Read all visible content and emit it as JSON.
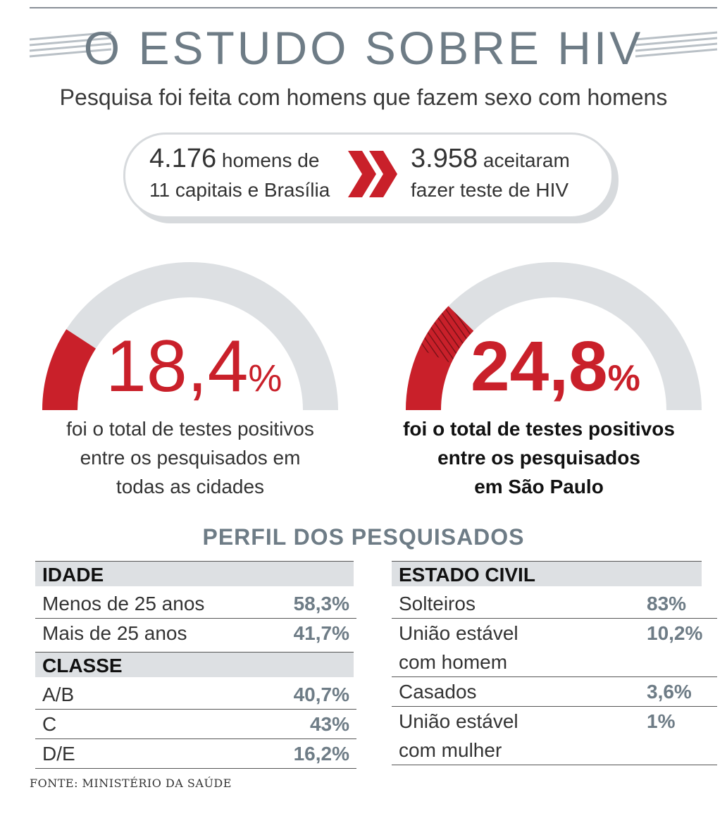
{
  "title": "O ESTUDO SOBRE HIV",
  "subtitle": "Pesquisa foi feita com homens que fazem sexo com homens",
  "summary": {
    "left_number": "4.176",
    "left_text_1": "homens de",
    "left_text_2": "11 capitais e Brasília",
    "right_number": "3.958",
    "right_text_1": "aceitaram",
    "right_text_2": "fazer teste de HIV"
  },
  "chart_data": [
    {
      "type": "gauge",
      "value": 18.4,
      "max": 100,
      "value_text": "18,4",
      "unit": "%",
      "caption": [
        "foi o total de testes positivos",
        "entre os pesquisados em",
        "todas as cidades"
      ]
    },
    {
      "type": "gauge",
      "value": 24.8,
      "max": 100,
      "value_text": "24,8",
      "unit": "%",
      "caption": [
        "foi o total de testes positivos",
        "entre os pesquisados",
        "em São Paulo"
      ]
    }
  ],
  "profile": {
    "title": "PERFIL DOS PESQUISADOS",
    "left": {
      "sections": [
        {
          "header": "IDADE",
          "rows": [
            {
              "label": [
                "Menos de 25 anos"
              ],
              "value": "58,3%"
            },
            {
              "label": [
                "Mais de 25 anos"
              ],
              "value": "41,7%"
            }
          ]
        },
        {
          "header": "CLASSE",
          "rows": [
            {
              "label": [
                "A/B"
              ],
              "value": "40,7%"
            },
            {
              "label": [
                "C"
              ],
              "value": "43%"
            },
            {
              "label": [
                "D/E"
              ],
              "value": "16,2%"
            }
          ]
        }
      ]
    },
    "right": {
      "sections": [
        {
          "header": "ESTADO CIVIL",
          "rows": [
            {
              "label": [
                "Solteiros"
              ],
              "value": "83%"
            },
            {
              "label": [
                "União estável",
                "com homem"
              ],
              "value": "10,2%"
            },
            {
              "label": [
                "Casados"
              ],
              "value": "3,6%"
            },
            {
              "label": [
                "União estável",
                "com mulher"
              ],
              "value": "1%"
            }
          ]
        }
      ]
    }
  },
  "source": "FONTE: MINISTÉRIO DA SAÚDE",
  "colors": {
    "accent_red": "#c9202a",
    "slate": "#6e7c86",
    "track_gray": "#dde0e3"
  },
  "icons": {
    "arrow": "double-chevron-right-icon"
  }
}
